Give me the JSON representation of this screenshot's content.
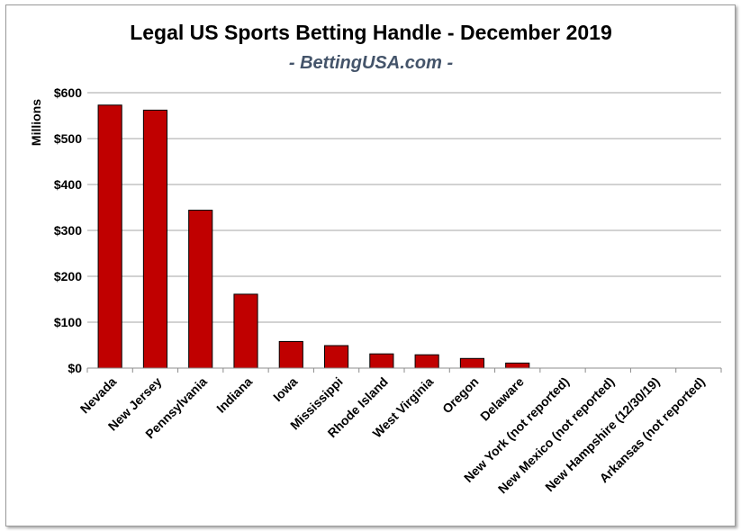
{
  "chart_data": {
    "type": "bar",
    "title": "Legal US Sports Betting Handle - December 2019",
    "subtitle": "- BettingUSA.com -",
    "xlabel": "",
    "ylabel": "Millions",
    "ylim": [
      0,
      600
    ],
    "yticks": [
      0,
      100,
      200,
      300,
      400,
      500,
      600
    ],
    "ytick_labels": [
      "$0",
      "$100",
      "$200",
      "$300",
      "$400",
      "$500",
      "$600"
    ],
    "grid": true,
    "legend": "none",
    "bar_color": "#c00000",
    "categories": [
      "Nevada",
      "New Jersey",
      "Pennsylvania",
      "Indiana",
      "Iowa",
      "Mississippi",
      "Rhode Island",
      "West Virginia",
      "Oregon",
      "Delaware",
      "New York (not reported)",
      "New Mexico (not reported)",
      "New Hampshire (12/30/19)",
      "Arkansas (not reported)"
    ],
    "values": [
      573,
      562,
      344,
      161,
      58,
      49,
      31,
      29,
      21,
      11,
      0,
      0,
      0,
      0
    ]
  }
}
